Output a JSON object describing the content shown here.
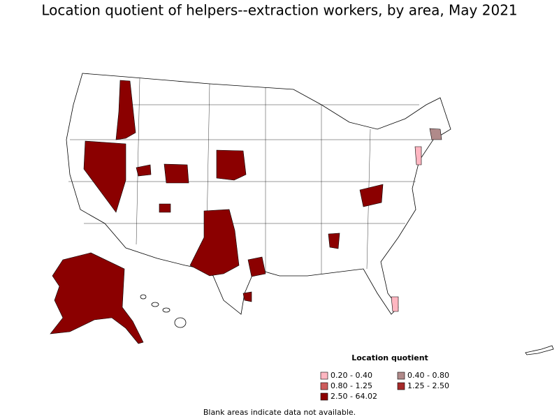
{
  "title": "Location quotient of helpers--extraction workers, by area, May 2021",
  "legend": {
    "title": "Location quotient",
    "items": [
      {
        "label": "0.20 - 0.40",
        "color": "#ffb6c1"
      },
      {
        "label": "0.40 - 0.80",
        "color": "#b08a8a"
      },
      {
        "label": "0.80 - 1.25",
        "color": "#cd5c5c"
      },
      {
        "label": "1.25 - 2.50",
        "color": "#a52a2a"
      },
      {
        "label": "2.50 - 64.02",
        "color": "#8b0000"
      }
    ]
  },
  "note": "Blank areas indicate data not available."
}
